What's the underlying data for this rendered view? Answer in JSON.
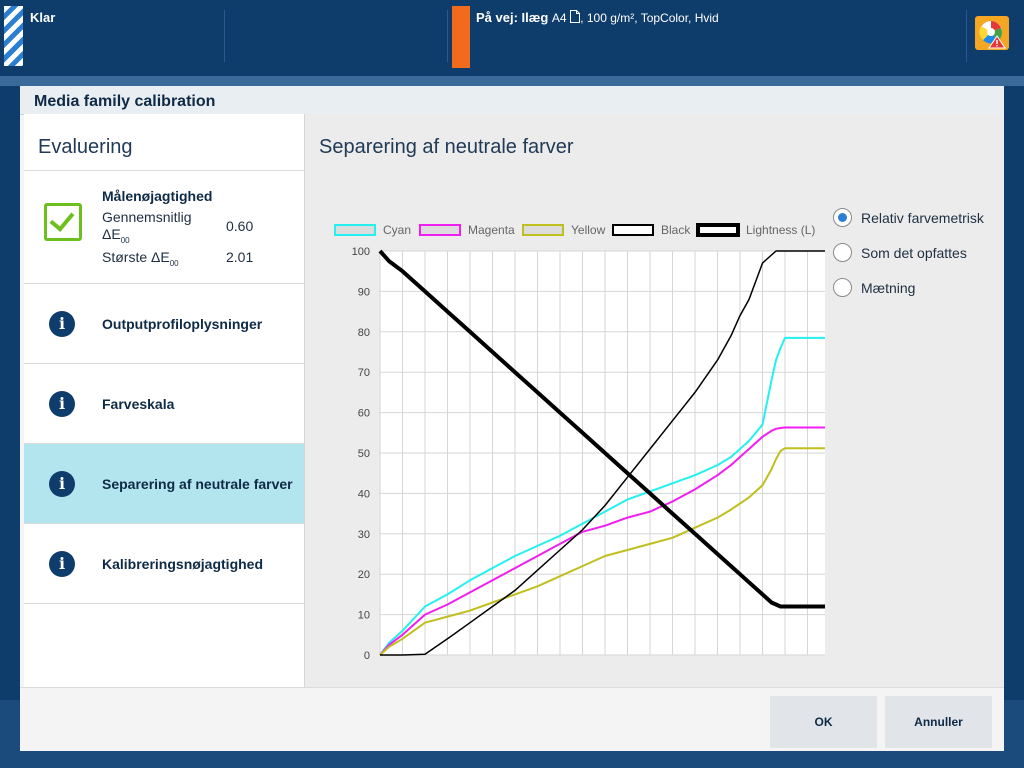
{
  "topbar": {
    "status": "Klar",
    "job_prefix": "På vej:",
    "job_type": "Ilæg",
    "job_size": "A4",
    "job_details": ", 100 g/m², TopColor, Hvid"
  },
  "dialog": {
    "title": "Media family calibration",
    "left_title": "Evaluering",
    "accuracy": {
      "title": "Målenøjagtighed",
      "avg_label": "Gennemsnitlig",
      "avg_value": "0.60",
      "max_label": "Største ΔE",
      "max_value": "2.01",
      "delta_symbol": "ΔE",
      "delta_sub": "00"
    },
    "items": [
      {
        "label": "Outputprofiloplysninger"
      },
      {
        "label": "Farveskala"
      },
      {
        "label": "Separering af neutrale farver"
      },
      {
        "label": "Kalibreringsnøjagtighed"
      }
    ],
    "right_title": "Separering af neutrale farver",
    "rendering": [
      {
        "label": "Relativ farvemetrisk",
        "selected": true
      },
      {
        "label": "Som det opfattes",
        "selected": false
      },
      {
        "label": "Mætning",
        "selected": false
      }
    ],
    "buttons": {
      "ok": "OK",
      "cancel": "Annuller"
    }
  },
  "chart_data": {
    "type": "line",
    "x_reversed": true,
    "xlim": [
      100,
      0
    ],
    "ylim": [
      0,
      100
    ],
    "x_ticks": [
      100,
      95,
      90,
      85,
      80,
      75,
      70,
      65,
      60,
      55,
      50,
      45,
      40,
      35,
      30,
      25,
      20,
      15,
      10,
      5,
      0
    ],
    "y_ticks": [
      0,
      10,
      20,
      30,
      40,
      50,
      60,
      70,
      80,
      90,
      100
    ],
    "grid": true,
    "legend_position": "top",
    "x": [
      100,
      98,
      95,
      90,
      85,
      80,
      75,
      70,
      65,
      60,
      55,
      50,
      45,
      40,
      35,
      30,
      25,
      22,
      20,
      18,
      15,
      13,
      12,
      11,
      10,
      5,
      0
    ],
    "series": [
      {
        "name": "Cyan",
        "color": "#24f0f0",
        "width": 2,
        "values": [
          0,
          3,
          6,
          12,
          15,
          18.5,
          21.5,
          24.5,
          27,
          29.5,
          32.5,
          35.5,
          38.5,
          40.5,
          42.5,
          44.5,
          47,
          49,
          51,
          53,
          57,
          68,
          73,
          76,
          78.5,
          78.5,
          78.5
        ]
      },
      {
        "name": "Magenta",
        "color": "#f01ef0",
        "width": 2,
        "values": [
          0,
          2.5,
          5,
          10,
          12.5,
          15.5,
          18.5,
          21.5,
          24.5,
          27.5,
          30.5,
          32,
          34,
          35.5,
          38,
          41,
          44.5,
          47,
          49,
          51,
          54,
          55.5,
          56,
          56.2,
          56.3,
          56.3,
          56.3
        ]
      },
      {
        "name": "Yellow",
        "color": "#bfbf1e",
        "width": 2,
        "values": [
          0,
          2,
          4,
          8,
          9.5,
          11,
          13,
          15,
          17,
          19.5,
          22,
          24.5,
          26,
          27.5,
          29,
          31.5,
          34,
          36,
          37.5,
          39,
          42,
          46,
          48.5,
          50.5,
          51.2,
          51.2,
          51.2
        ]
      },
      {
        "name": "Black",
        "color": "#000000",
        "width": 1.5,
        "values": [
          0,
          0,
          0,
          0.2,
          4,
          8,
          12,
          16,
          21,
          26,
          31,
          37,
          44,
          51,
          58,
          65,
          73,
          79,
          84,
          88,
          97,
          99,
          100,
          100,
          100,
          100,
          100
        ]
      },
      {
        "name": "Lightness (L)",
        "color": "#000000",
        "width": 4,
        "values": [
          100,
          97.5,
          95,
          90,
          85,
          80,
          75,
          70,
          65,
          60,
          55,
          50,
          45,
          40,
          35,
          30,
          25,
          22,
          20,
          18,
          15,
          13,
          12.5,
          12,
          12,
          12,
          12
        ]
      }
    ]
  }
}
